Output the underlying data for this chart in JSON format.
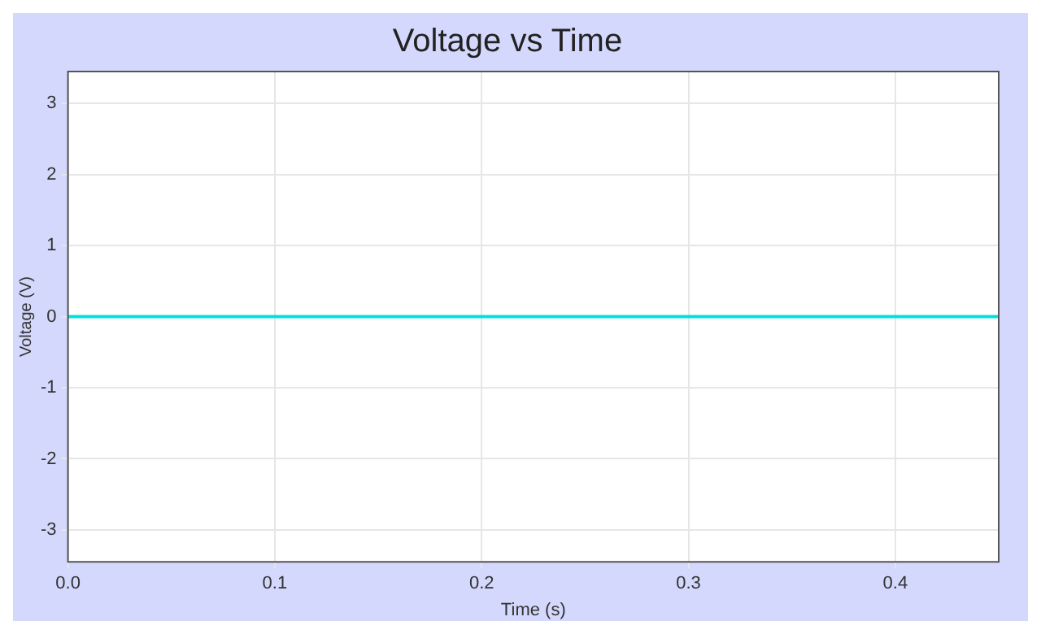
{
  "chart_data": {
    "type": "line",
    "title": "Voltage vs Time",
    "xlabel": "Time (s)",
    "ylabel": "Voltage (V)",
    "x": [
      0,
      0.45
    ],
    "series": [
      {
        "color": "#00e0e0",
        "values": [
          0,
          0
        ]
      }
    ],
    "xlim": [
      0,
      0.45
    ],
    "xticks": [
      {
        "value": 0,
        "label": "0.0"
      },
      {
        "value": 0.1,
        "label": "0.1"
      },
      {
        "value": 0.2,
        "label": "0.2"
      },
      {
        "value": 0.3,
        "label": "0.3"
      },
      {
        "value": 0.4,
        "label": "0.4"
      }
    ],
    "ylim": [
      -3.45,
      3.45
    ],
    "yticks": [
      -3,
      -2,
      -1,
      0,
      1,
      2,
      3
    ],
    "grid": true,
    "legend": false,
    "marker": "none",
    "line_style": "solid"
  }
}
